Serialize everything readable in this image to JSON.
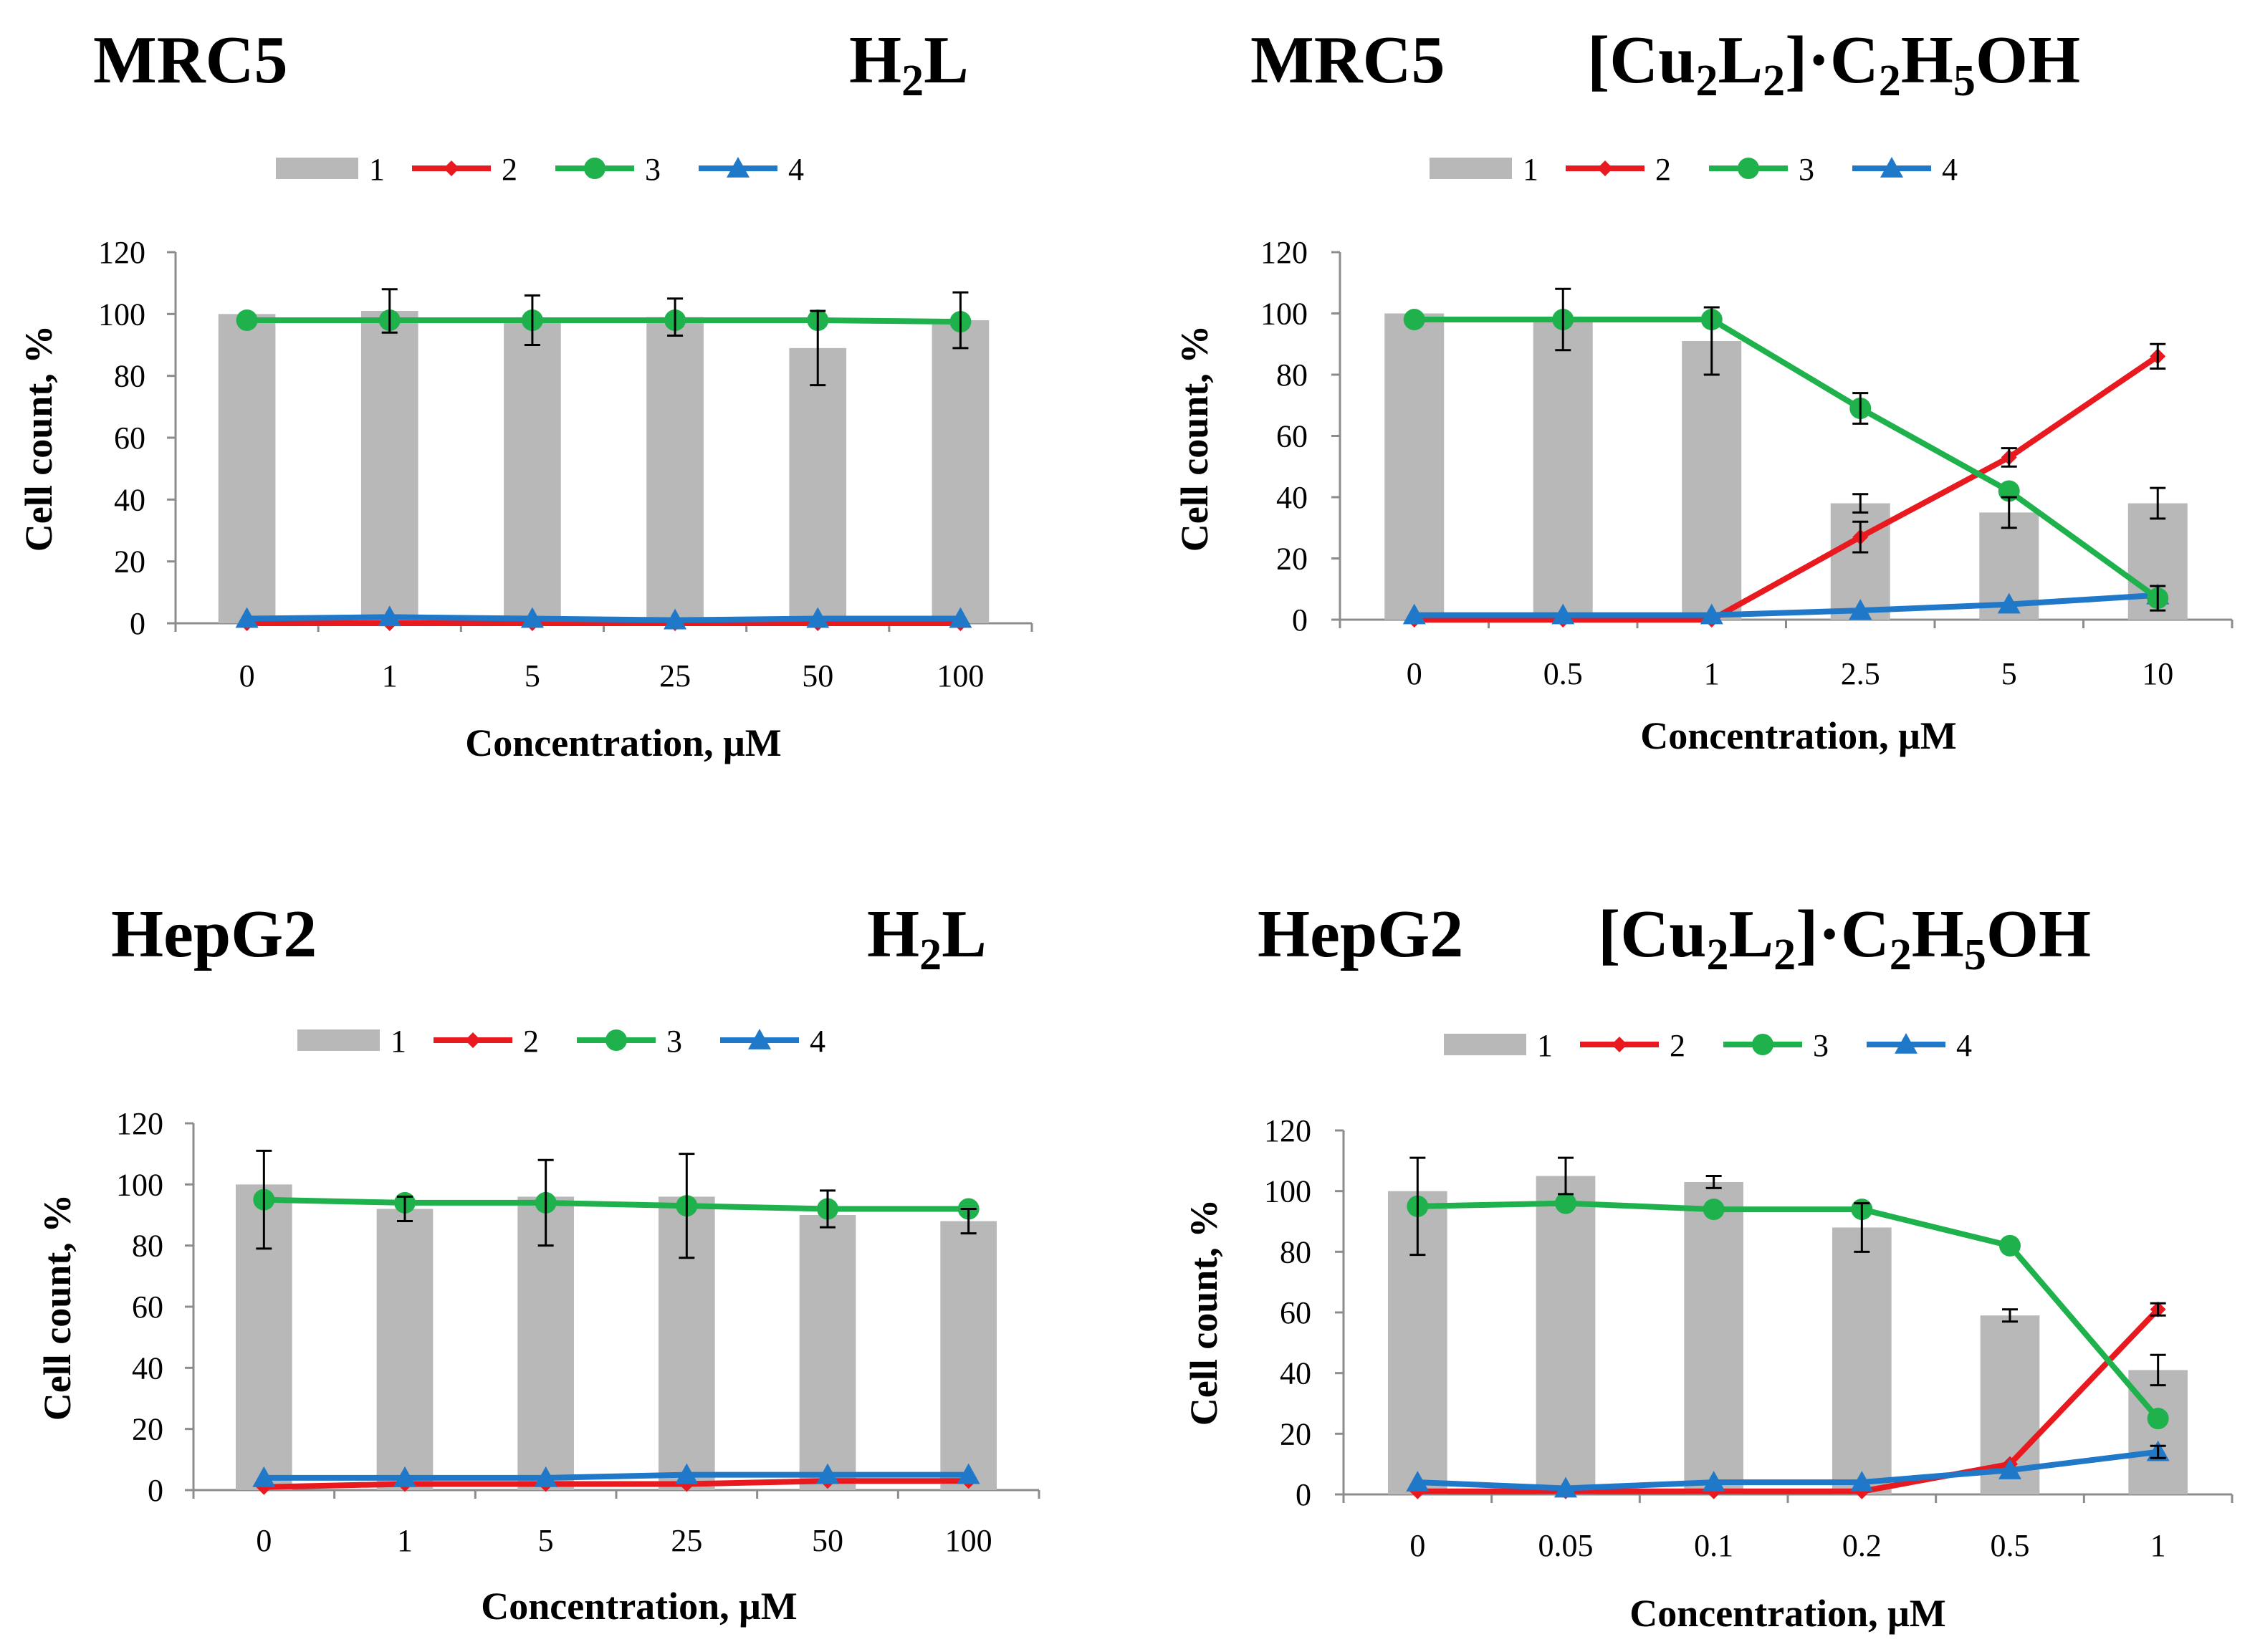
{
  "colors": {
    "bar": "#b8b8b8",
    "series_2": "#e8191f",
    "series_3": "#1fb14c",
    "series_4": "#1f78c8",
    "axis": "#8c8c8c",
    "error_bar": "#000000"
  },
  "legend": [
    "1",
    "2",
    "3",
    "4"
  ],
  "chart_data": [
    {
      "type": "bar+line",
      "title_left": "MRC5",
      "title_right": [
        {
          "t": "H"
        },
        {
          "t": "2",
          "sub": true
        },
        {
          "t": "L"
        }
      ],
      "categories": [
        "0",
        "1",
        "5",
        "25",
        "50",
        "100"
      ],
      "xlabel": "Concentration, μM",
      "ylabel": "Cell count, %",
      "ylim": [
        0,
        120
      ],
      "yticks": [
        "0",
        "20",
        "40",
        "60",
        "80",
        "100",
        "120"
      ],
      "bars": {
        "name": "1",
        "values": [
          100,
          101,
          98,
          99,
          89,
          98
        ],
        "err": [
          0,
          7,
          8,
          6,
          12,
          9
        ]
      },
      "series": [
        {
          "name": "2",
          "values": [
            0,
            0,
            0,
            0,
            0,
            0
          ],
          "marker": "diamond",
          "err": [
            0,
            0,
            0,
            0,
            0,
            0
          ]
        },
        {
          "name": "3",
          "values": [
            98,
            98,
            98,
            98,
            98,
            97.5
          ],
          "marker": "circle",
          "err": [
            0,
            0,
            0,
            0,
            0,
            0
          ]
        },
        {
          "name": "4",
          "values": [
            1.5,
            2,
            1.5,
            1,
            1.5,
            1.5
          ],
          "marker": "triangle",
          "err": [
            0,
            0,
            0,
            0,
            0,
            0
          ]
        }
      ]
    },
    {
      "type": "bar+line",
      "title_left": "MRC5",
      "title_right": [
        {
          "t": "[Cu"
        },
        {
          "t": "2",
          "sub": true
        },
        {
          "t": "L"
        },
        {
          "t": "2",
          "sub": true
        },
        {
          "t": "]·C"
        },
        {
          "t": "2",
          "sub": true
        },
        {
          "t": "H"
        },
        {
          "t": "5",
          "sub": true
        },
        {
          "t": "OH"
        }
      ],
      "categories": [
        "0",
        "0.5",
        "1",
        "2.5",
        "5",
        "10"
      ],
      "xlabel": "Concentration,  μM",
      "ylabel": "Cell count, %",
      "ylim": [
        0,
        120
      ],
      "yticks": [
        "0",
        "20",
        "40",
        "60",
        "80",
        "100",
        "120"
      ],
      "bars": {
        "name": "1",
        "values": [
          100,
          98,
          91,
          38,
          35,
          38
        ],
        "err": [
          0,
          10,
          11,
          3,
          5,
          5
        ]
      },
      "series": [
        {
          "name": "2",
          "values": [
            0,
            0,
            0,
            27,
            53,
            86
          ],
          "marker": "diamond",
          "err": [
            0,
            0,
            0,
            5,
            3,
            4
          ]
        },
        {
          "name": "3",
          "values": [
            98,
            98,
            98,
            69,
            42,
            7
          ],
          "marker": "circle",
          "err": [
            0,
            0,
            0,
            5,
            0,
            4
          ]
        },
        {
          "name": "4",
          "values": [
            1.5,
            1.5,
            1.5,
            3,
            5,
            8
          ],
          "marker": "triangle",
          "err": [
            0,
            0,
            0,
            0,
            0,
            0
          ]
        }
      ]
    },
    {
      "type": "bar+line",
      "title_left": "HepG2",
      "title_right": [
        {
          "t": "H"
        },
        {
          "t": "2",
          "sub": true
        },
        {
          "t": "L"
        }
      ],
      "categories": [
        "0",
        "1",
        "5",
        "25",
        "50",
        "100"
      ],
      "xlabel": "Concentration, μM",
      "ylabel": "Cell count, %",
      "ylim": [
        0,
        120
      ],
      "yticks": [
        "0",
        "20",
        "40",
        "60",
        "80",
        "100",
        "120"
      ],
      "bars": {
        "name": "1",
        "values": [
          100,
          92,
          96,
          96,
          90,
          88
        ],
        "err": [
          0,
          4,
          0,
          0,
          0,
          4
        ]
      },
      "series": [
        {
          "name": "2",
          "values": [
            1,
            2,
            2,
            2,
            3,
            3
          ],
          "marker": "diamond",
          "err": [
            0,
            0,
            0,
            0,
            0,
            0
          ]
        },
        {
          "name": "3",
          "values": [
            95,
            94,
            94,
            93,
            92,
            92
          ],
          "marker": "circle",
          "err": [
            16,
            0,
            14,
            17,
            6,
            0
          ]
        },
        {
          "name": "4",
          "values": [
            4,
            4,
            4,
            5,
            5,
            5
          ],
          "marker": "triangle",
          "err": [
            0,
            0,
            0,
            0,
            0,
            0
          ]
        }
      ]
    },
    {
      "type": "bar+line",
      "title_left": "HepG2",
      "title_right": [
        {
          "t": "[Cu"
        },
        {
          "t": "2",
          "sub": true
        },
        {
          "t": "L"
        },
        {
          "t": "2",
          "sub": true
        },
        {
          "t": "]·C"
        },
        {
          "t": "2",
          "sub": true
        },
        {
          "t": "H"
        },
        {
          "t": "5",
          "sub": true
        },
        {
          "t": "OH"
        }
      ],
      "categories": [
        "0",
        "0.05",
        "0.1",
        "0.2",
        "0.5",
        "1"
      ],
      "xlabel": "Concentration, μM",
      "ylabel": "Cell count, %",
      "ylim": [
        0,
        120
      ],
      "yticks": [
        "0",
        "20",
        "40",
        "60",
        "80",
        "100",
        "120"
      ],
      "bars": {
        "name": "1",
        "values": [
          100,
          105,
          103,
          88,
          59,
          41
        ],
        "err": [
          0,
          6,
          2,
          8,
          2,
          5
        ]
      },
      "series": [
        {
          "name": "2",
          "values": [
            1,
            1,
            1,
            1,
            10,
            61
          ],
          "marker": "diamond",
          "err": [
            0,
            0,
            0,
            0,
            0,
            2
          ]
        },
        {
          "name": "3",
          "values": [
            95,
            96,
            94,
            94,
            82,
            25
          ],
          "marker": "circle",
          "err": [
            16,
            0,
            0,
            0,
            0,
            0
          ]
        },
        {
          "name": "4",
          "values": [
            4,
            2,
            4,
            4,
            8,
            14
          ],
          "marker": "triangle",
          "err": [
            0,
            0,
            0,
            0,
            0,
            2
          ]
        }
      ]
    }
  ]
}
